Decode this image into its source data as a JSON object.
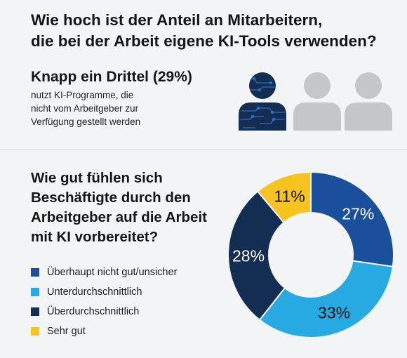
{
  "question1": {
    "lines": [
      "Wie hoch ist der Anteil an Mitarbeitern,",
      "die bei der Arbeit eigene KI-Tools verwenden?"
    ]
  },
  "stat": {
    "headline": "Knapp ein Drittel (29%)",
    "lines": [
      "nutzt KI-Programme, die",
      "nicht vom Arbeitgeber zur",
      "Verfügung gestellt werden"
    ],
    "people_icons": [
      "person-highlighted-icon",
      "person-icon",
      "person-icon"
    ]
  },
  "question2": {
    "lines": [
      "Wie gut fühlen sich",
      "Beschäftigte durch den",
      "Arbeitgeber auf die Arbeit",
      "mit KI vorbereitet?"
    ]
  },
  "colors": {
    "dark_blue": "#1a4f9c",
    "light_blue": "#27aae1",
    "navy": "#142d52",
    "yellow": "#f7c41f",
    "gray": "#c5c6c8"
  },
  "chart_data": {
    "type": "pie",
    "donut": true,
    "categories": [
      "Überhaupt nicht gut/unsicher",
      "Unterdurchschnittlich",
      "Überdurchschnittlich",
      "Sehr gut"
    ],
    "values": [
      27,
      33,
      28,
      11
    ],
    "labels": [
      "27%",
      "33%",
      "28%",
      "11%"
    ],
    "colors": [
      "#1a4f9c",
      "#27aae1",
      "#142d52",
      "#f7c41f"
    ],
    "label_colors": [
      "#ffffff",
      "#111111",
      "#ffffff",
      "#111111"
    ],
    "start_angle_deg": 0,
    "legend_position": "left"
  }
}
